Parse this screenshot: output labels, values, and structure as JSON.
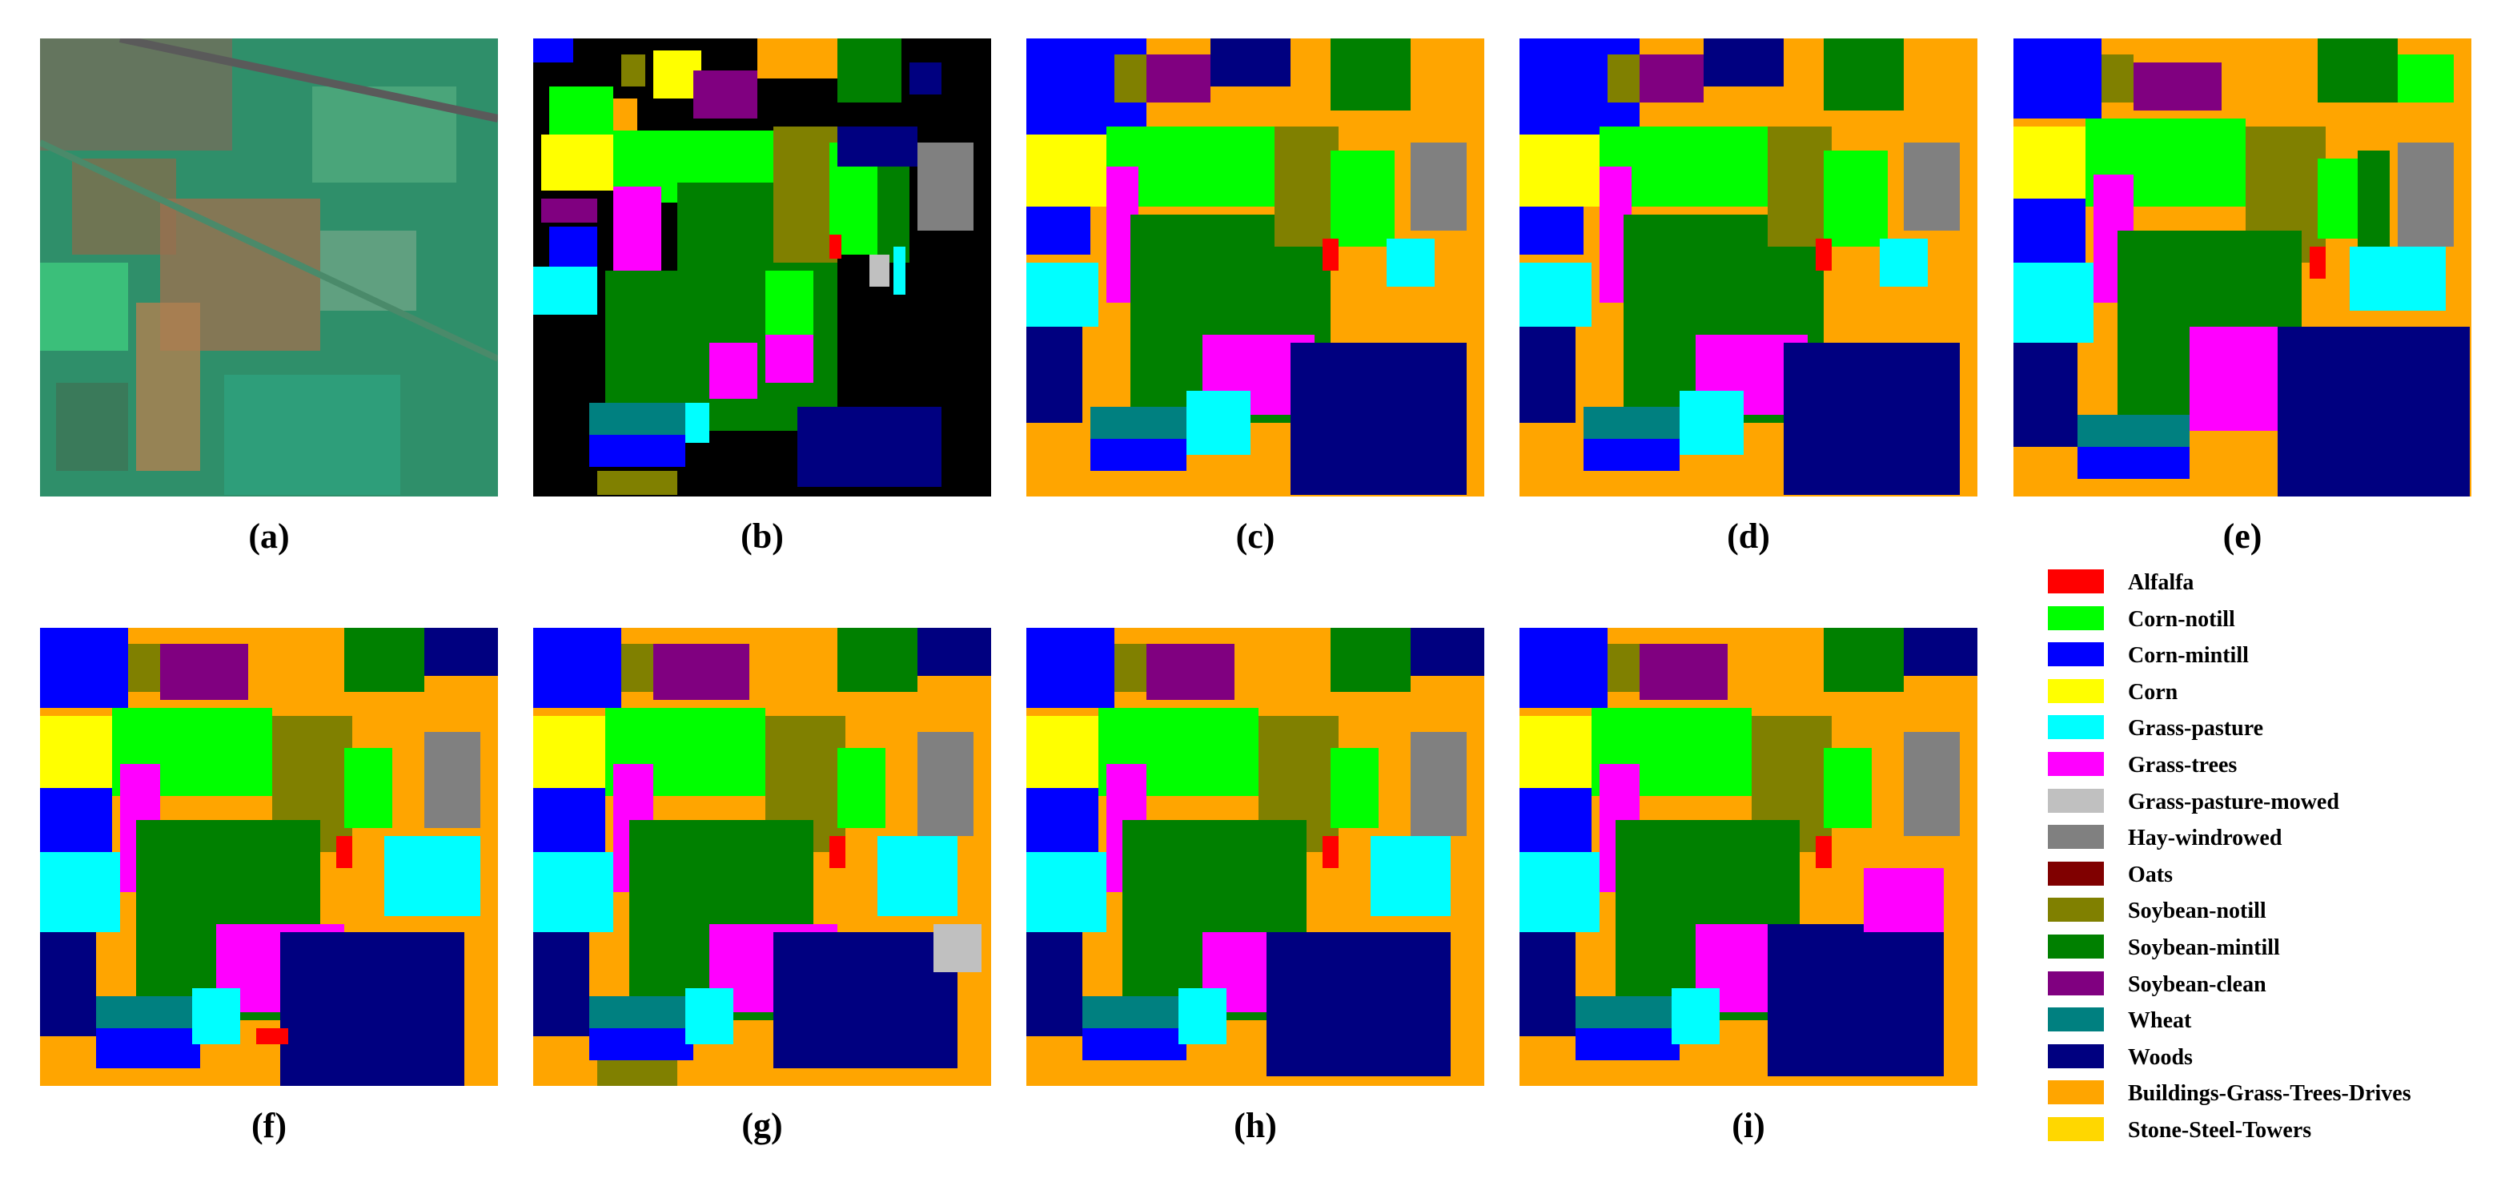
{
  "captions": [
    "(a)",
    "(b)",
    "(c)",
    "(d)",
    "(e)",
    "(f)",
    "(g)",
    "(h)",
    "(i)"
  ],
  "legend": [
    {
      "label": "Alfalfa",
      "color": "#ff0000"
    },
    {
      "label": "Corn-notill",
      "color": "#00ff00"
    },
    {
      "label": "Corn-mintill",
      "color": "#0000ff"
    },
    {
      "label": "Corn",
      "color": "#ffff00"
    },
    {
      "label": "Grass-pasture",
      "color": "#00ffff"
    },
    {
      "label": "Grass-trees",
      "color": "#ff00ff"
    },
    {
      "label": "Grass-pasture-mowed",
      "color": "#c0c0c0"
    },
    {
      "label": "Hay-windrowed",
      "color": "#808080"
    },
    {
      "label": "Oats",
      "color": "#800000"
    },
    {
      "label": "Soybean-notill",
      "color": "#808000"
    },
    {
      "label": "Soybean-mintill",
      "color": "#008000"
    },
    {
      "label": "Soybean-clean",
      "color": "#800080"
    },
    {
      "label": "Wheat",
      "color": "#008080"
    },
    {
      "label": "Woods",
      "color": "#000080"
    },
    {
      "label": "Buildings-Grass-Trees-Drives",
      "color": "#ffa500"
    },
    {
      "label": "Stone-Steel-Towers",
      "color": "#ffd700"
    }
  ]
}
